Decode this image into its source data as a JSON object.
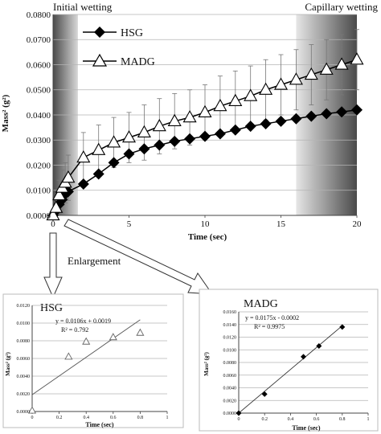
{
  "figure": {
    "zone_initial": "Initial wetting",
    "zone_capillary": "Capillary wetting",
    "enlargement_label": "Enlargement"
  },
  "chart_data": [
    {
      "type": "line",
      "title": "",
      "xlabel": "Time (sec)",
      "ylabel": "Mass² (g²)",
      "xlim": [
        0,
        20
      ],
      "ylim": [
        0,
        0.08
      ],
      "xticks": [
        "0",
        "5",
        "10",
        "15",
        "20"
      ],
      "yticks": [
        "0.0000",
        "0.0100",
        "0.0200",
        "0.0300",
        "0.0400",
        "0.0500",
        "0.0600",
        "0.0700",
        "0.0800"
      ],
      "legend_position": "top-left",
      "series": [
        {
          "name": "HSG",
          "marker": "diamond-filled",
          "x": [
            0,
            0.2,
            0.4,
            0.6,
            0.8,
            1,
            2,
            3,
            4,
            5,
            6,
            7,
            8,
            9,
            10,
            11,
            12,
            13,
            14,
            15,
            16,
            17,
            18,
            19,
            20
          ],
          "y": [
            0.0,
            0.0019,
            0.0044,
            0.0063,
            0.0085,
            0.0095,
            0.0125,
            0.0165,
            0.021,
            0.0245,
            0.0265,
            0.028,
            0.0295,
            0.0305,
            0.0315,
            0.0325,
            0.034,
            0.0355,
            0.0365,
            0.0375,
            0.0385,
            0.0395,
            0.0405,
            0.0412,
            0.042
          ]
        },
        {
          "name": "MADG",
          "marker": "triangle-open",
          "x": [
            0,
            0.2,
            0.4,
            0.6,
            0.8,
            1,
            2,
            3,
            4,
            5,
            6,
            7,
            8,
            9,
            10,
            11,
            12,
            13,
            14,
            15,
            16,
            17,
            18,
            19,
            20
          ],
          "y": [
            0.0,
            0.003,
            0.008,
            0.011,
            0.013,
            0.015,
            0.023,
            0.026,
            0.029,
            0.031,
            0.033,
            0.0355,
            0.0375,
            0.039,
            0.041,
            0.0435,
            0.0455,
            0.0475,
            0.05,
            0.052,
            0.054,
            0.056,
            0.058,
            0.06,
            0.062
          ],
          "error": [
            0,
            0.004,
            0.006,
            0.007,
            0.008,
            0.009,
            0.01,
            0.01,
            0.01,
            0.01,
            0.011,
            0.011,
            0.011,
            0.011,
            0.011,
            0.012,
            0.012,
            0.012,
            0.012,
            0.012,
            0.012,
            0.012,
            0.012,
            0.012,
            0.012
          ]
        }
      ],
      "shaded_regions": [
        {
          "label": "Initial wetting",
          "x_start": 0,
          "x_end": 1
        },
        {
          "label": "Capillary wetting",
          "x_start": 16,
          "x_end": 20
        }
      ]
    },
    {
      "type": "scatter",
      "title": "HSG",
      "xlabel": "Time (sec)",
      "ylabel": "Mass² (g²)",
      "xlim": [
        0,
        1
      ],
      "ylim": [
        0,
        0.012
      ],
      "xticks": [
        "0",
        "0.2",
        "0.4",
        "0.6",
        "0.8",
        "1"
      ],
      "yticks": [
        "0.0000",
        "0.0020",
        "0.0040",
        "0.0060",
        "0.0080",
        "0.0100",
        "0.0120"
      ],
      "marker": "triangle-open",
      "x": [
        0,
        0.27,
        0.4,
        0.6,
        0.8
      ],
      "y": [
        0.0001,
        0.0062,
        0.0079,
        0.0084,
        0.0089
      ],
      "trendline": {
        "slope": 0.0106,
        "intercept": 0.0019
      },
      "equation": "y = 0.0106x + 0.0019",
      "r2": "R² = 0.792"
    },
    {
      "type": "scatter",
      "title": "MADG",
      "xlabel": "Time (sec)",
      "ylabel": "Mass² (g²)",
      "xlim": [
        0,
        1
      ],
      "ylim": [
        0,
        0.016
      ],
      "xticks": [
        "0",
        "0.2",
        "0.4",
        "0.6",
        "0.8",
        "1"
      ],
      "yticks": [
        "0.0000",
        "0.0020",
        "0.0040",
        "0.0060",
        "0.0080",
        "0.0100",
        "0.0120",
        "0.0140",
        "0.0160"
      ],
      "marker": "diamond-filled",
      "x": [
        0,
        0.2,
        0.5,
        0.62,
        0.8
      ],
      "y": [
        0.0,
        0.003,
        0.0089,
        0.0106,
        0.0136
      ],
      "trendline": {
        "slope": 0.0175,
        "intercept": -0.0002
      },
      "equation": "y = 0.0175x - 0.0002",
      "r2": "R² = 0.9975"
    }
  ]
}
